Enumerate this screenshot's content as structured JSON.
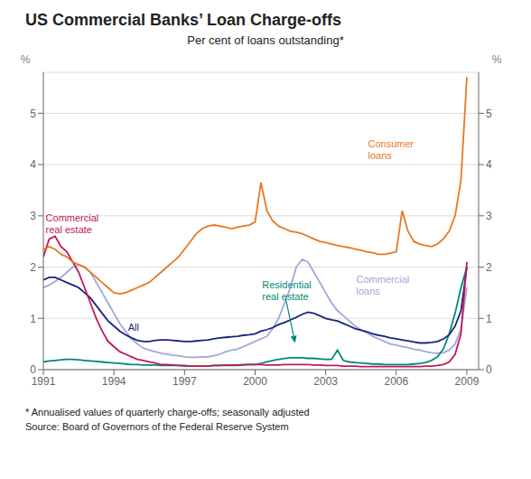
{
  "chart_data": {
    "type": "line",
    "title": "US Commercial Banks’ Loan Charge-offs",
    "subtitle": "Per cent of loans outstanding*",
    "footnote": "*   Annualised values of quarterly charge-offs; seasonally adjusted",
    "source": "Source: Board of Governors of the Federal Reserve System",
    "ylabel": "%",
    "y2label": "%",
    "x": [
      1991.0,
      1991.25,
      1991.5,
      1991.75,
      1992.0,
      1992.25,
      1992.5,
      1992.75,
      1993.0,
      1993.25,
      1993.5,
      1993.75,
      1994.0,
      1994.25,
      1994.5,
      1994.75,
      1995.0,
      1995.25,
      1995.5,
      1995.75,
      1996.0,
      1996.25,
      1996.5,
      1996.75,
      1997.0,
      1997.25,
      1997.5,
      1997.75,
      1998.0,
      1998.25,
      1998.5,
      1998.75,
      1999.0,
      1999.25,
      1999.5,
      1999.75,
      2000.0,
      2000.25,
      2000.5,
      2000.75,
      2001.0,
      2001.25,
      2001.5,
      2001.75,
      2002.0,
      2002.25,
      2002.5,
      2002.75,
      2003.0,
      2003.25,
      2003.5,
      2003.75,
      2004.0,
      2004.25,
      2004.5,
      2004.75,
      2005.0,
      2005.25,
      2005.5,
      2005.75,
      2006.0,
      2006.25,
      2006.5,
      2006.75,
      2007.0,
      2007.25,
      2007.5,
      2007.75,
      2008.0,
      2008.25,
      2008.5,
      2008.75,
      2009.0
    ],
    "xlim": [
      1991.0,
      2009.5
    ],
    "xticks": [
      1991,
      1994,
      1997,
      2000,
      2003,
      2006,
      2009
    ],
    "ylim": [
      0,
      5.8
    ],
    "yticks": [
      0,
      1,
      2,
      3,
      4,
      5
    ],
    "y2lim": [
      0,
      5.8
    ],
    "y2ticks": [
      0,
      1,
      2,
      3,
      4,
      5
    ],
    "grid": "y",
    "series": [
      {
        "name": "Commercial\nloans",
        "color": "#9FA8DA",
        "values": [
          1.6,
          1.65,
          1.72,
          1.8,
          1.9,
          2.0,
          2.05,
          2.0,
          1.9,
          1.7,
          1.5,
          1.3,
          1.1,
          0.9,
          0.75,
          0.6,
          0.5,
          0.42,
          0.38,
          0.35,
          0.32,
          0.3,
          0.28,
          0.27,
          0.25,
          0.24,
          0.24,
          0.25,
          0.25,
          0.27,
          0.3,
          0.35,
          0.38,
          0.4,
          0.45,
          0.5,
          0.55,
          0.6,
          0.65,
          0.8,
          1.0,
          1.3,
          1.6,
          2.0,
          2.15,
          2.1,
          1.9,
          1.7,
          1.5,
          1.3,
          1.15,
          1.05,
          0.95,
          0.85,
          0.78,
          0.72,
          0.65,
          0.6,
          0.55,
          0.5,
          0.48,
          0.45,
          0.43,
          0.4,
          0.38,
          0.35,
          0.33,
          0.32,
          0.33,
          0.38,
          0.5,
          0.8,
          1.6
        ]
      },
      {
        "name": "Residential\nreal estate",
        "color": "#00897B",
        "values": [
          0.15,
          0.17,
          0.18,
          0.19,
          0.2,
          0.2,
          0.19,
          0.18,
          0.17,
          0.16,
          0.15,
          0.14,
          0.13,
          0.12,
          0.11,
          0.1,
          0.1,
          0.09,
          0.09,
          0.09,
          0.08,
          0.08,
          0.08,
          0.08,
          0.07,
          0.07,
          0.07,
          0.07,
          0.07,
          0.08,
          0.08,
          0.08,
          0.08,
          0.08,
          0.09,
          0.1,
          0.1,
          0.12,
          0.15,
          0.18,
          0.2,
          0.22,
          0.23,
          0.23,
          0.23,
          0.22,
          0.22,
          0.21,
          0.2,
          0.2,
          0.38,
          0.18,
          0.15,
          0.14,
          0.13,
          0.12,
          0.11,
          0.11,
          0.1,
          0.1,
          0.1,
          0.1,
          0.1,
          0.11,
          0.12,
          0.14,
          0.18,
          0.25,
          0.4,
          0.7,
          1.1,
          1.6,
          2.0
        ]
      },
      {
        "name": "All",
        "color": "#1A237E",
        "values": [
          1.75,
          1.8,
          1.8,
          1.75,
          1.7,
          1.65,
          1.6,
          1.5,
          1.4,
          1.25,
          1.1,
          0.95,
          0.85,
          0.75,
          0.68,
          0.62,
          0.57,
          0.55,
          0.55,
          0.57,
          0.58,
          0.58,
          0.57,
          0.56,
          0.55,
          0.55,
          0.56,
          0.57,
          0.58,
          0.6,
          0.62,
          0.63,
          0.64,
          0.65,
          0.67,
          0.68,
          0.7,
          0.75,
          0.78,
          0.82,
          0.88,
          0.92,
          0.97,
          1.02,
          1.08,
          1.12,
          1.1,
          1.05,
          1.0,
          0.97,
          0.95,
          0.9,
          0.85,
          0.8,
          0.77,
          0.74,
          0.7,
          0.67,
          0.65,
          0.62,
          0.6,
          0.58,
          0.56,
          0.54,
          0.52,
          0.52,
          0.53,
          0.55,
          0.6,
          0.68,
          0.85,
          1.15,
          2.0
        ]
      },
      {
        "name": "Commercial\nreal estate",
        "color": "#C2185B",
        "values": [
          2.2,
          2.55,
          2.6,
          2.4,
          2.3,
          2.1,
          1.9,
          1.6,
          1.3,
          1.0,
          0.75,
          0.55,
          0.45,
          0.35,
          0.3,
          0.25,
          0.2,
          0.18,
          0.15,
          0.13,
          0.1,
          0.1,
          0.09,
          0.08,
          0.08,
          0.07,
          0.07,
          0.07,
          0.07,
          0.08,
          0.08,
          0.09,
          0.09,
          0.09,
          0.1,
          0.1,
          0.1,
          0.1,
          0.09,
          0.09,
          0.09,
          0.1,
          0.1,
          0.1,
          0.1,
          0.1,
          0.09,
          0.09,
          0.08,
          0.08,
          0.08,
          0.07,
          0.07,
          0.07,
          0.06,
          0.06,
          0.06,
          0.06,
          0.06,
          0.06,
          0.06,
          0.06,
          0.06,
          0.06,
          0.06,
          0.07,
          0.07,
          0.08,
          0.1,
          0.15,
          0.3,
          0.7,
          2.1
        ]
      },
      {
        "name": "Consumer\nloans",
        "color": "#E87722",
        "values": [
          2.35,
          2.4,
          2.35,
          2.25,
          2.2,
          2.1,
          2.05,
          2.0,
          1.9,
          1.8,
          1.7,
          1.6,
          1.5,
          1.48,
          1.5,
          1.55,
          1.6,
          1.65,
          1.7,
          1.8,
          1.9,
          2.0,
          2.1,
          2.2,
          2.35,
          2.5,
          2.65,
          2.75,
          2.8,
          2.82,
          2.8,
          2.78,
          2.75,
          2.78,
          2.8,
          2.82,
          2.88,
          3.65,
          3.1,
          2.9,
          2.8,
          2.75,
          2.7,
          2.68,
          2.65,
          2.6,
          2.55,
          2.5,
          2.48,
          2.45,
          2.42,
          2.4,
          2.38,
          2.35,
          2.33,
          2.3,
          2.28,
          2.25,
          2.25,
          2.27,
          2.3,
          3.1,
          2.7,
          2.5,
          2.45,
          2.42,
          2.4,
          2.45,
          2.55,
          2.7,
          3.0,
          3.7,
          5.7
        ]
      }
    ],
    "annotations": [
      {
        "text": "Consumer\nloans",
        "x": 2004.8,
        "y": 4.3,
        "color": "#E87722"
      },
      {
        "text": "Commercial\nreal estate",
        "x": 1991.1,
        "y": 2.85,
        "color": "#C2185B"
      },
      {
        "text": "Residential\nreal estate",
        "x": 2000.3,
        "y": 1.55,
        "color": "#00897B",
        "arrow": {
          "x": [
            2001.3,
            2001.7
          ],
          "y": [
            1.38,
            0.52
          ]
        }
      },
      {
        "text": "Commercial\nloans",
        "x": 2004.3,
        "y": 1.65,
        "color": "#9FA8DA"
      },
      {
        "text": "All",
        "x": 1994.6,
        "y": 0.82,
        "color": "#1A237E"
      }
    ]
  }
}
